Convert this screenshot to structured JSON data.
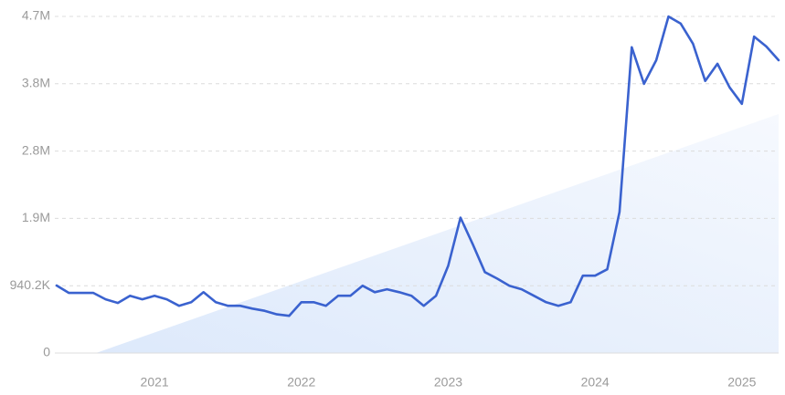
{
  "chart_data": {
    "type": "line",
    "categories": [
      null,
      null,
      null,
      null,
      null,
      null,
      null,
      null,
      "2021",
      null,
      null,
      null,
      null,
      null,
      null,
      null,
      null,
      null,
      null,
      null,
      "2022",
      null,
      null,
      null,
      null,
      null,
      null,
      null,
      null,
      null,
      null,
      null,
      "2023",
      null,
      null,
      null,
      null,
      null,
      null,
      null,
      null,
      null,
      null,
      null,
      "2024",
      null,
      null,
      null,
      null,
      null,
      null,
      null,
      null,
      null,
      null,
      null,
      "2025",
      null,
      null,
      null
    ],
    "values": [
      943000,
      840000,
      840000,
      840000,
      750000,
      700000,
      800000,
      750000,
      800000,
      750000,
      660000,
      710000,
      850000,
      710000,
      660000,
      660000,
      620000,
      590000,
      540000,
      520000,
      710000,
      710000,
      660000,
      800000,
      800000,
      940000,
      850000,
      890000,
      850000,
      800000,
      660000,
      800000,
      1220000,
      1890000,
      1520000,
      1130000,
      1040000,
      940000,
      890000,
      800000,
      710000,
      660000,
      710000,
      1080000,
      1080000,
      1170000,
      1970000,
      4270000,
      3760000,
      4090000,
      4700000,
      4600000,
      4320000,
      3800000,
      4040000,
      3710000,
      3480000,
      4420000,
      4280000,
      4090000
    ],
    "color": "#3a62cf",
    "ylim": [
      0,
      4701000
    ],
    "yticks": [
      0,
      {
        "value": 940200,
        "label": "940.2K"
      },
      {
        "value": 1880400,
        "label": "1.9M"
      },
      {
        "value": 2820600,
        "label": "2.8M"
      },
      {
        "value": 3760800,
        "label": "3.8M"
      },
      {
        "value": 4701000,
        "label": "4.7M"
      }
    ],
    "grid": true
  }
}
